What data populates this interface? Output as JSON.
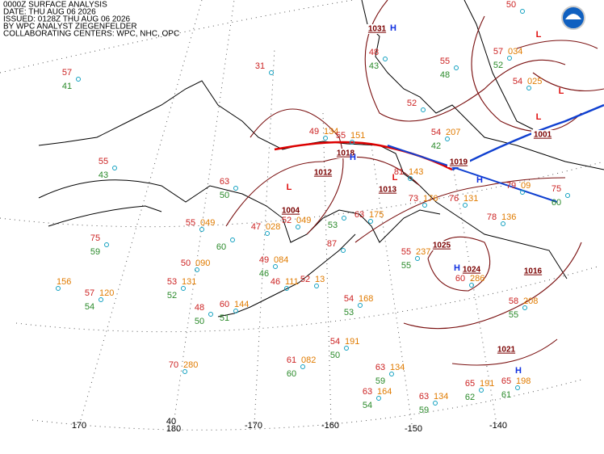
{
  "header": {
    "lines": [
      "0000Z SURFACE ANALYSIS",
      "DATE: THU AUG 06 2026",
      "ISSUED: 0128Z THU AUG 06 2026",
      "BY WPC ANALYST ZIEGENFELDER",
      "COLLABORATING CENTERS: WPC, NHC, OPC"
    ]
  },
  "longitude_labels": [
    "170",
    "180",
    "-170",
    "-160",
    "-150",
    "-140"
  ],
  "latitude_label": "40",
  "isobar_labels": [
    "1031",
    "1018",
    "1013",
    "1019",
    "1004",
    "1025",
    "1024",
    "1016",
    "1021",
    "1001",
    "1012"
  ],
  "centers": [
    "H",
    "H",
    "H",
    "H",
    "H",
    "L",
    "L",
    "L",
    "L",
    "L"
  ],
  "stations": [
    {
      "t": "57",
      "d": "41"
    },
    {
      "t": "55",
      "d": "43"
    },
    {
      "t": "75",
      "d": "59"
    },
    {
      "t": "57",
      "p": "120",
      "d": "54"
    },
    {
      "t": "50",
      "p": "090"
    },
    {
      "t": "53",
      "p": "131",
      "d": "52"
    },
    {
      "t": "48",
      "d": "50"
    },
    {
      "t": "60",
      "p": "144",
      "d": "51"
    },
    {
      "t": "70",
      "p": "280"
    },
    {
      "t": "63",
      "d": "50"
    },
    {
      "t": "55",
      "p": "049"
    },
    {
      "t": "49",
      "p": "084",
      "d": "46"
    },
    {
      "t": "46",
      "p": "111"
    },
    {
      "t": "52",
      "p": "13"
    },
    {
      "t": "54",
      "p": "168",
      "d": "53"
    },
    {
      "t": "54",
      "p": "191",
      "d": "50"
    },
    {
      "t": "61",
      "p": "082",
      "d": "60"
    },
    {
      "t": "63",
      "p": "134",
      "d": "59"
    },
    {
      "t": "63",
      "p": "164",
      "d": "54"
    },
    {
      "t": "63",
      "p": "134",
      "d": "59"
    },
    {
      "t": "65",
      "p": "191",
      "d": "62"
    },
    {
      "t": "65",
      "p": "198",
      "d": "61"
    },
    {
      "t": "58",
      "p": "208",
      "d": "55"
    },
    {
      "t": "55",
      "p": "237",
      "d": "55"
    },
    {
      "t": "60",
      "p": "286"
    },
    {
      "t": "63",
      "p": "175"
    },
    {
      "t": "49",
      "p": "134"
    },
    {
      "t": "55",
      "p": "151"
    },
    {
      "t": "54",
      "p": "207",
      "d": "42"
    },
    {
      "t": "81",
      "p": "143"
    },
    {
      "t": "73",
      "p": "176"
    },
    {
      "t": "76",
      "p": "131"
    },
    {
      "t": "78",
      "p": "136"
    },
    {
      "t": "79",
      "p": "09"
    },
    {
      "t": "75",
      "d": "60"
    },
    {
      "t": "54",
      "p": "025"
    },
    {
      "t": "57",
      "p": "034",
      "d": "52"
    },
    {
      "t": "48",
      "d": "43"
    },
    {
      "t": "52"
    },
    {
      "t": "55",
      "d": "48"
    },
    {
      "t": "50"
    },
    {
      "t": "31"
    },
    {
      "t": "47",
      "p": "028"
    },
    {
      "t": "52",
      "p": "049"
    },
    {
      "d": "60"
    },
    {
      "p": "156"
    },
    {
      "d": "53"
    },
    {
      "t": "87"
    }
  ]
}
